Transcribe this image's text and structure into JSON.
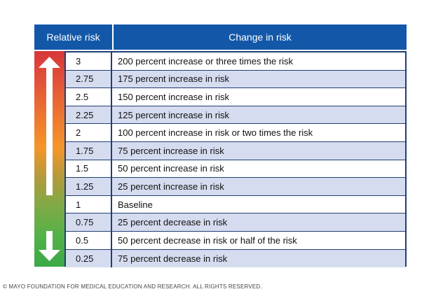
{
  "table": {
    "header_relative": "Relative risk",
    "header_change": "Change in risk",
    "rows": [
      {
        "value": "3",
        "text": "200 percent increase or three times the risk"
      },
      {
        "value": "2.75",
        "text": "175 percent increase in risk"
      },
      {
        "value": "2.5",
        "text": "150 percent increase in risk"
      },
      {
        "value": "2.25",
        "text": "125 percent increase in risk"
      },
      {
        "value": "2",
        "text": "100 percent increase in risk or two times the risk"
      },
      {
        "value": "1.75",
        "text": "75 percent increase in risk"
      },
      {
        "value": "1.5",
        "text": "50 percent increase in risk"
      },
      {
        "value": "1.25",
        "text": "25 percent increase in risk"
      },
      {
        "value": "1",
        "text": "Baseline"
      },
      {
        "value": "0.75",
        "text": "25 percent decrease in risk"
      },
      {
        "value": "0.5",
        "text": "50 percent decrease in risk or half of the risk"
      },
      {
        "value": "0.25",
        "text": "75 percent decrease in risk"
      }
    ]
  },
  "colors": {
    "header_blue": "#1358a8",
    "border_navy": "#1f3f73",
    "row_shade": "#d6dcef",
    "gradient_top": "#d8363a",
    "gradient_mid": "#f4962a",
    "gradient_bottom": "#3aa947"
  },
  "icons": {
    "up_arrow": "up-arrow-icon",
    "down_arrow": "down-arrow-icon"
  },
  "footer": {
    "copyright": "© MAYO FOUNDATION FOR MEDICAL EDUCATION AND RESEARCH. ALL RIGHTS RESERVED."
  }
}
